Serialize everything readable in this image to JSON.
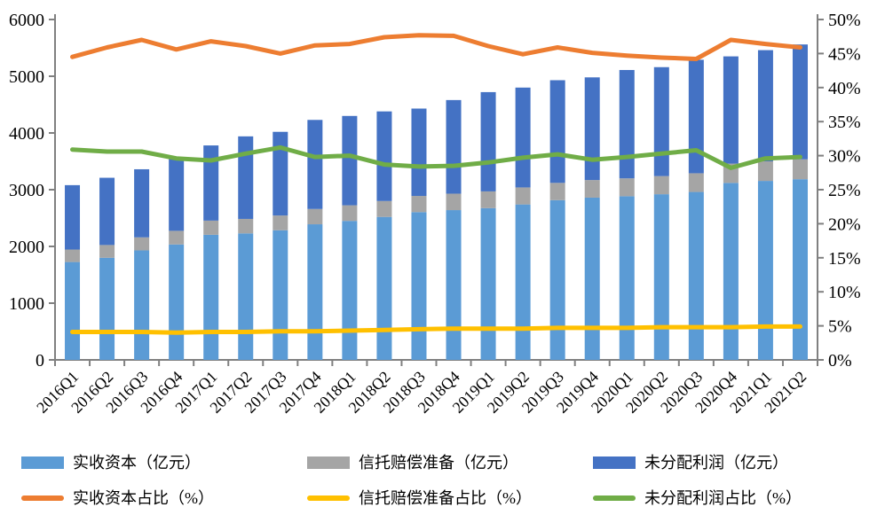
{
  "chart_data": {
    "type": "bar",
    "subtype": "stacked-bars-with-percentage-lines",
    "categories": [
      "2016Q1",
      "2016Q2",
      "2016Q3",
      "2016Q4",
      "2017Q1",
      "2017Q2",
      "2017Q3",
      "2017Q4",
      "2018Q1",
      "2018Q2",
      "2018Q3",
      "2018Q4",
      "2019Q1",
      "2019Q2",
      "2019Q3",
      "2019Q4",
      "2020Q1",
      "2020Q2",
      "2020Q3",
      "2020Q4",
      "2021Q1",
      "2021Q2"
    ],
    "bar_series": [
      {
        "name": "实收资本（亿元）",
        "color": "#5B9BD5",
        "axis": "left",
        "values": [
          1725,
          1800,
          1930,
          2035,
          2205,
          2230,
          2285,
          2390,
          2450,
          2520,
          2605,
          2640,
          2675,
          2740,
          2815,
          2860,
          2885,
          2920,
          2960,
          3120,
          3155,
          3185
        ]
      },
      {
        "name": "信托赔偿准备（亿元）",
        "color": "#A5A5A5",
        "axis": "left",
        "values": [
          220,
          225,
          230,
          240,
          250,
          255,
          260,
          270,
          275,
          280,
          285,
          290,
          295,
          300,
          305,
          310,
          315,
          320,
          330,
          340,
          345,
          350
        ]
      },
      {
        "name": "未分配利润（亿元）",
        "color": "#4472C4",
        "axis": "left",
        "values": [
          1135,
          1185,
          1200,
          1285,
          1325,
          1455,
          1475,
          1570,
          1575,
          1580,
          1540,
          1650,
          1750,
          1760,
          1810,
          1810,
          1910,
          1920,
          2000,
          1890,
          1960,
          2025
        ]
      }
    ],
    "line_series": [
      {
        "name": "实收资本占比（%）",
        "color": "#ED7D31",
        "axis": "right",
        "values": [
          44.5,
          45.9,
          47.0,
          45.6,
          46.8,
          46.1,
          45.0,
          46.2,
          46.4,
          47.4,
          47.7,
          47.6,
          46.1,
          44.9,
          45.9,
          45.1,
          44.7,
          44.4,
          44.2,
          47.0,
          46.4,
          45.9
        ]
      },
      {
        "name": "信托赔偿准备占比（%）",
        "color": "#FFC000",
        "axis": "right",
        "values": [
          4.1,
          4.1,
          4.1,
          4.0,
          4.1,
          4.1,
          4.2,
          4.2,
          4.3,
          4.4,
          4.5,
          4.6,
          4.6,
          4.6,
          4.7,
          4.7,
          4.7,
          4.8,
          4.8,
          4.8,
          4.9,
          4.9
        ]
      },
      {
        "name": "未分配利润占比（%）",
        "color": "#70AD47",
        "axis": "right",
        "values": [
          30.9,
          30.6,
          30.6,
          29.6,
          29.3,
          30.3,
          31.2,
          29.8,
          30.0,
          28.7,
          28.4,
          28.5,
          29.0,
          29.7,
          30.2,
          29.4,
          29.8,
          30.3,
          30.8,
          28.2,
          29.6,
          29.8
        ]
      }
    ],
    "left_axis": {
      "min": 0,
      "max": 6000,
      "step": 1000,
      "tick_labels": [
        "0",
        "1000",
        "2000",
        "3000",
        "4000",
        "5000",
        "6000"
      ]
    },
    "right_axis": {
      "min": 0,
      "max": 50,
      "step": 5,
      "tick_labels": [
        "0%",
        "5%",
        "10%",
        "15%",
        "20%",
        "25%",
        "30%",
        "35%",
        "40%",
        "45%",
        "50%"
      ]
    },
    "title": "",
    "xlabel": "",
    "ylabel": "",
    "grid": false,
    "legend_position": "bottom"
  },
  "colors": {
    "background": "#FFFFFF",
    "axis_line": "#808080",
    "tick_text": "#000000"
  }
}
